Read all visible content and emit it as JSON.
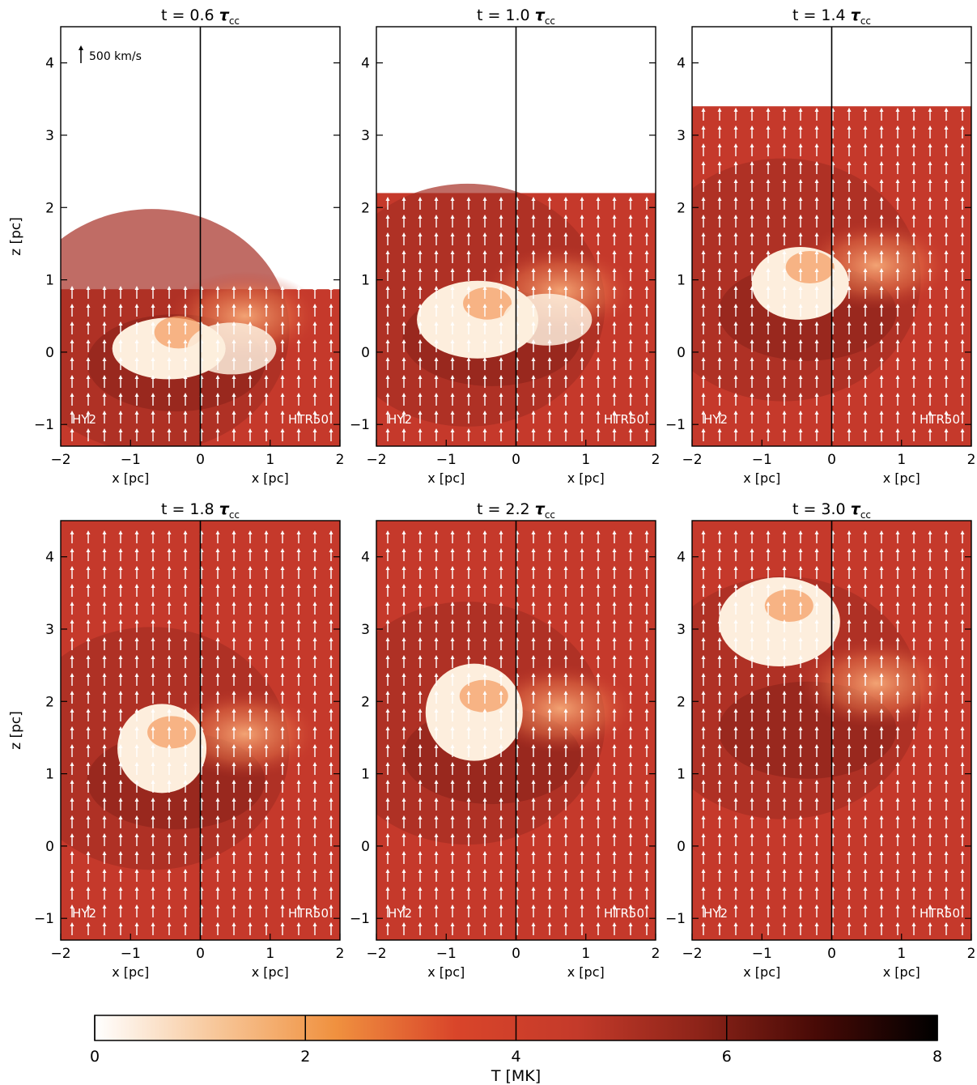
{
  "chart_data": [
    {
      "type": "heatmap",
      "title": "t = 0.6",
      "title_symbol": "τ",
      "title_subscript": "cc",
      "panels": [
        "HY2",
        "HTR50"
      ],
      "xlabels": [
        "x [pc]",
        "x [pc]"
      ],
      "ylabel": "z [pc]",
      "x_ticks": [
        "−2",
        "−1",
        "0",
        "1",
        "2"
      ],
      "y_ticks": [
        "−1",
        "0",
        "1",
        "2",
        "3",
        "4"
      ],
      "xlim": [
        -2,
        2
      ],
      "ylim": [
        -1.3,
        4.5
      ],
      "cloud_top_z": 0.87,
      "velocity_key": "500 km/s"
    },
    {
      "type": "heatmap",
      "title": "t = 1.0",
      "title_symbol": "τ",
      "title_subscript": "cc",
      "panels": [
        "HY2",
        "HTR50"
      ],
      "xlabels": [
        "x [pc]",
        "x [pc]"
      ],
      "ylabel": "",
      "x_ticks": [
        "−2",
        "−1",
        "0",
        "1",
        "2"
      ],
      "y_ticks": [
        "−1",
        "0",
        "1",
        "2",
        "3",
        "4"
      ],
      "xlim": [
        -2,
        2
      ],
      "ylim": [
        -1.3,
        4.5
      ],
      "cloud_top_z": 2.2
    },
    {
      "type": "heatmap",
      "title": "t = 1.4",
      "title_symbol": "τ",
      "title_subscript": "cc",
      "panels": [
        "HY2",
        "HTR50"
      ],
      "xlabels": [
        "x [pc]",
        "x [pc]"
      ],
      "ylabel": "",
      "x_ticks": [
        "−2",
        "−1",
        "0",
        "1",
        "2"
      ],
      "y_ticks": [
        "−1",
        "0",
        "1",
        "2",
        "3",
        "4"
      ],
      "xlim": [
        -2,
        2
      ],
      "ylim": [
        -1.3,
        4.5
      ],
      "cloud_top_z": 3.4
    },
    {
      "type": "heatmap",
      "title": "t = 1.8",
      "title_symbol": "τ",
      "title_subscript": "cc",
      "panels": [
        "HY2",
        "HTR50"
      ],
      "xlabels": [
        "x [pc]",
        "x [pc]"
      ],
      "ylabel": "z [pc]",
      "x_ticks": [
        "−2",
        "−1",
        "0",
        "1",
        "2"
      ],
      "y_ticks": [
        "−1",
        "0",
        "1",
        "2",
        "3",
        "4"
      ],
      "xlim": [
        -2,
        2
      ],
      "ylim": [
        -1.3,
        4.5
      ],
      "cloud_top_z": 4.5
    },
    {
      "type": "heatmap",
      "title": "t = 2.2",
      "title_symbol": "τ",
      "title_subscript": "cc",
      "panels": [
        "HY2",
        "HTR50"
      ],
      "xlabels": [
        "x [pc]",
        "x [pc]"
      ],
      "ylabel": "",
      "x_ticks": [
        "−2",
        "−1",
        "0",
        "1",
        "2"
      ],
      "y_ticks": [
        "−1",
        "0",
        "1",
        "2",
        "3",
        "4"
      ],
      "xlim": [
        -2,
        2
      ],
      "ylim": [
        -1.3,
        4.5
      ],
      "cloud_top_z": 4.5
    },
    {
      "type": "heatmap",
      "title": "t = 3.0",
      "title_symbol": "τ",
      "title_subscript": "cc",
      "panels": [
        "HY2",
        "HTR50"
      ],
      "xlabels": [
        "x [pc]",
        "x [pc]"
      ],
      "ylabel": "",
      "x_ticks": [
        "−2",
        "−1",
        "0",
        "1",
        "2"
      ],
      "y_ticks": [
        "−1",
        "0",
        "1",
        "2",
        "3",
        "4"
      ],
      "xlim": [
        -2,
        2
      ],
      "ylim": [
        -1.3,
        4.5
      ],
      "cloud_top_z": 4.5
    }
  ],
  "colorbar": {
    "label": "T [MK]",
    "range": [
      0,
      8
    ],
    "ticks": [
      "0",
      "2",
      "4",
      "6",
      "8"
    ],
    "colors": [
      "#ffffff",
      "#f7c79a",
      "#f0913f",
      "#d9452a",
      "#c43a2a",
      "#8e2419",
      "#470a06",
      "#000000"
    ]
  },
  "colors": {
    "ambient": "#c5392b",
    "shell": "#a52e24",
    "dark": "#7e1e16",
    "hot": "#f39a5e",
    "cloud": "#fdeedd",
    "arrow": "#ffffff"
  }
}
